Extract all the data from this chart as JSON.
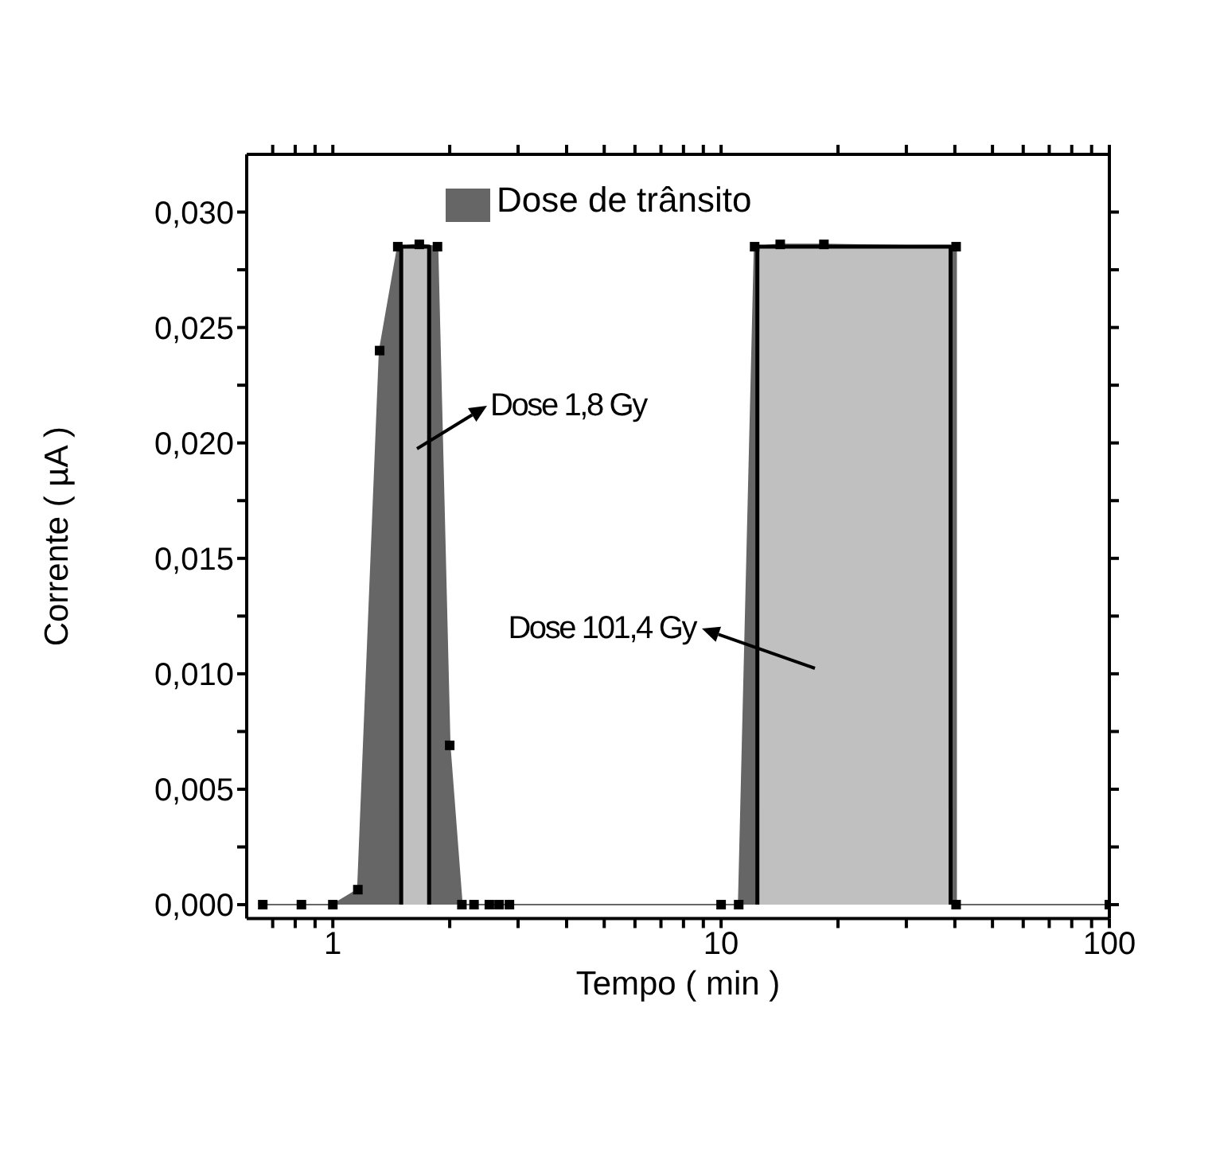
{
  "chart_data": {
    "type": "area",
    "xlabel": "Tempo ( min )",
    "ylabel": "Corrente ( µA )",
    "log": "x",
    "xlim": [
      0.6,
      100
    ],
    "ylim": [
      -0.0006,
      0.0325
    ],
    "xticks": [
      {
        "value": 0.7,
        "label": null
      },
      {
        "value": 0.8,
        "label": null
      },
      {
        "value": 0.9,
        "label": null
      },
      1,
      {
        "value": 2,
        "label": null
      },
      {
        "value": 3,
        "label": null
      },
      {
        "value": 4,
        "label": null
      },
      {
        "value": 5,
        "label": null
      },
      {
        "value": 6,
        "label": null
      },
      {
        "value": 7,
        "label": null
      },
      {
        "value": 8,
        "label": null
      },
      {
        "value": 9,
        "label": null
      },
      10,
      {
        "value": 20,
        "label": null
      },
      {
        "value": 30,
        "label": null
      },
      {
        "value": 40,
        "label": null
      },
      {
        "value": 50,
        "label": null
      },
      {
        "value": 60,
        "label": null
      },
      {
        "value": 70,
        "label": null
      },
      {
        "value": 80,
        "label": null
      },
      {
        "value": 90,
        "label": null
      },
      100
    ],
    "yticks": [
      {
        "value": 0,
        "label": "0,000"
      },
      {
        "value": 0.0025,
        "label": null
      },
      {
        "value": 0.005,
        "label": "0,005"
      },
      {
        "value": 0.0075,
        "label": null
      },
      {
        "value": 0.01,
        "label": "0,010"
      },
      {
        "value": 0.0125,
        "label": null
      },
      {
        "value": 0.015,
        "label": "0,015"
      },
      {
        "value": 0.0175,
        "label": null
      },
      {
        "value": 0.02,
        "label": "0,020"
      },
      {
        "value": 0.0225,
        "label": null
      },
      {
        "value": 0.025,
        "label": "0,025"
      },
      {
        "value": 0.0275,
        "label": null
      },
      {
        "value": 0.03,
        "label": "0,030"
      }
    ],
    "legend": "top",
    "series": [
      {
        "name": "Dose de trânsito",
        "color": "#666666",
        "marker": "square",
        "x": [
          0.66,
          0.83,
          1.0,
          1.16,
          1.32,
          1.47,
          1.67,
          1.86,
          2.0,
          2.15,
          2.31,
          2.53,
          2.68,
          2.85,
          10,
          11.1,
          12.2,
          14.2,
          18.4,
          40.3,
          40.3,
          100
        ],
        "values": [
          0,
          0,
          0,
          0.00065,
          0.024,
          0.0285,
          0.0286,
          0.0285,
          0.0069,
          0,
          0,
          0,
          0,
          0,
          0,
          0,
          0.0285,
          0.0286,
          0.0286,
          0.0285,
          0,
          0
        ]
      },
      {
        "color": "#c0c0c0",
        "marker": "none",
        "x": [
          1.5,
          1.5,
          1.77,
          1.77,
          5,
          12.4,
          12.4,
          39,
          39
        ],
        "values": [
          0,
          0.0285,
          0.0285,
          0,
          null,
          0,
          0.0285,
          0.0285,
          0
        ]
      }
    ],
    "annotations": [
      "Dose 1,8 Gy",
      "Dose 101,4 Gy"
    ]
  }
}
